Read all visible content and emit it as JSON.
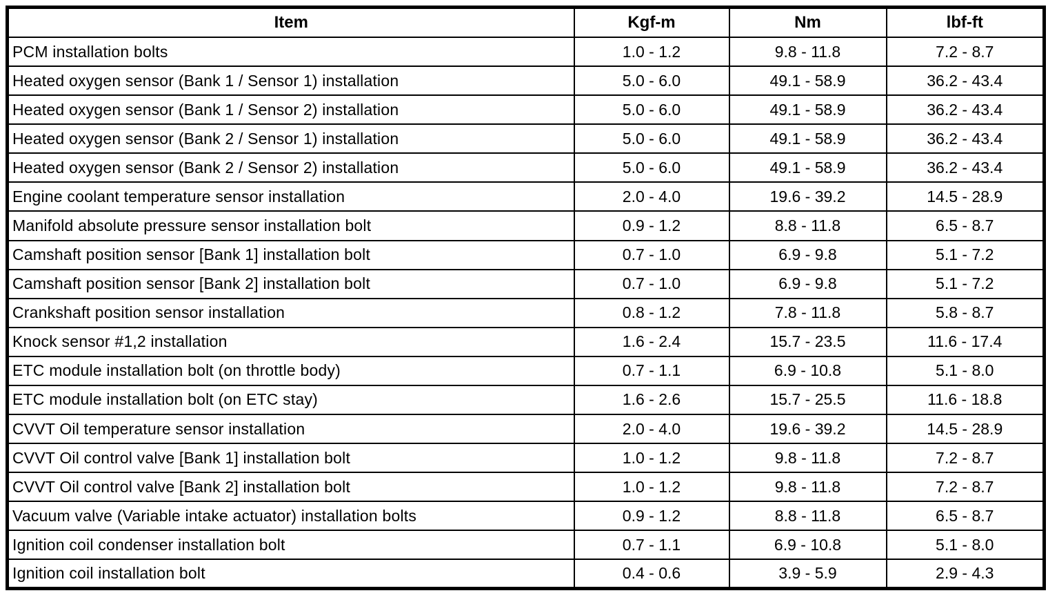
{
  "table": {
    "columns": [
      "Item",
      "Kgf-m",
      "Nm",
      "lbf-ft"
    ],
    "rows": [
      {
        "item": "PCM installation bolts",
        "kgf": "1.0 - 1.2",
        "nm": "9.8 - 11.8",
        "lbf": "7.2 - 8.7"
      },
      {
        "item": "Heated oxygen sensor (Bank 1 / Sensor 1) installation",
        "kgf": "5.0 - 6.0",
        "nm": "49.1 - 58.9",
        "lbf": "36.2 - 43.4"
      },
      {
        "item": "Heated oxygen sensor (Bank 1 / Sensor 2) installation",
        "kgf": "5.0 - 6.0",
        "nm": "49.1 - 58.9",
        "lbf": "36.2 - 43.4"
      },
      {
        "item": "Heated oxygen sensor (Bank 2 / Sensor 1) installation",
        "kgf": "5.0 - 6.0",
        "nm": "49.1 - 58.9",
        "lbf": "36.2 - 43.4"
      },
      {
        "item": "Heated oxygen sensor (Bank 2 / Sensor 2) installation",
        "kgf": "5.0 - 6.0",
        "nm": "49.1 - 58.9",
        "lbf": "36.2 - 43.4"
      },
      {
        "item": "Engine coolant temperature sensor installation",
        "kgf": "2.0 - 4.0",
        "nm": "19.6 - 39.2",
        "lbf": "14.5 - 28.9"
      },
      {
        "item": "Manifold absolute pressure sensor installation bolt",
        "kgf": "0.9 - 1.2",
        "nm": "8.8 - 11.8",
        "lbf": "6.5 - 8.7"
      },
      {
        "item": "Camshaft position sensor [Bank 1] installation bolt",
        "kgf": "0.7 - 1.0",
        "nm": "6.9 - 9.8",
        "lbf": "5.1 - 7.2"
      },
      {
        "item": "Camshaft position sensor [Bank 2] installation bolt",
        "kgf": "0.7 - 1.0",
        "nm": "6.9 - 9.8",
        "lbf": "5.1 - 7.2"
      },
      {
        "item": "Crankshaft position sensor installation",
        "kgf": "0.8 - 1.2",
        "nm": "7.8 - 11.8",
        "lbf": "5.8 - 8.7"
      },
      {
        "item": "Knock sensor #1,2 installation",
        "kgf": "1.6 - 2.4",
        "nm": "15.7 - 23.5",
        "lbf": "11.6 - 17.4"
      },
      {
        "item": "ETC module installation bolt (on throttle body)",
        "kgf": "0.7 - 1.1",
        "nm": "6.9 - 10.8",
        "lbf": "5.1 - 8.0"
      },
      {
        "item": "ETC module installation bolt (on ETC stay)",
        "kgf": "1.6 - 2.6",
        "nm": "15.7 - 25.5",
        "lbf": "11.6 - 18.8"
      },
      {
        "item": "CVVT Oil temperature sensor installation",
        "kgf": "2.0 - 4.0",
        "nm": "19.6 - 39.2",
        "lbf": "14.5 - 28.9"
      },
      {
        "item": "CVVT Oil control valve [Bank 1] installation bolt",
        "kgf": "1.0 - 1.2",
        "nm": "9.8 - 11.8",
        "lbf": "7.2 - 8.7"
      },
      {
        "item": "CVVT Oil control valve [Bank 2] installation bolt",
        "kgf": "1.0 - 1.2",
        "nm": "9.8 - 11.8",
        "lbf": "7.2 - 8.7"
      },
      {
        "item": "Vacuum valve (Variable intake actuator) installation bolts",
        "kgf": "0.9 - 1.2",
        "nm": "8.8 - 11.8",
        "lbf": "6.5 - 8.7"
      },
      {
        "item": "Ignition coil condenser installation bolt",
        "kgf": "0.7 - 1.1",
        "nm": "6.9 - 10.8",
        "lbf": "5.1 - 8.0"
      },
      {
        "item": "Ignition coil installation bolt",
        "kgf": "0.4 - 0.6",
        "nm": "3.9 - 5.9",
        "lbf": "2.9 - 4.3"
      }
    ],
    "border_color": "#000000",
    "background_color": "#ffffff"
  }
}
